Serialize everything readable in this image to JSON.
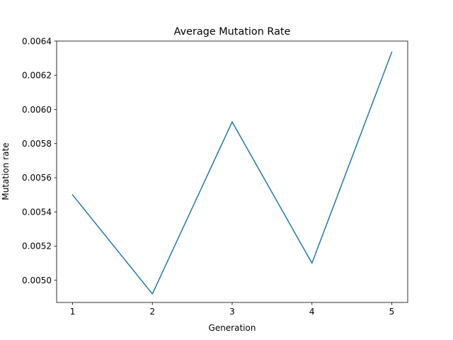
{
  "chart_data": {
    "type": "line",
    "title": "Average Mutation Rate",
    "xlabel": "Generation",
    "ylabel": "Mutation rate",
    "x": [
      1,
      2,
      3,
      4,
      5
    ],
    "x_ticks": [
      "1",
      "2",
      "3",
      "4",
      "5"
    ],
    "series": [
      {
        "values": [
          0.0055,
          0.00492,
          0.005927,
          0.0051,
          0.006335
        ]
      }
    ],
    "xlim": [
      0.8,
      5.2
    ],
    "ylim": [
      0.00487,
      0.0064
    ],
    "y_ticks": [
      "0.0050",
      "0.0052",
      "0.0054",
      "0.0056",
      "0.0058",
      "0.0060",
      "0.0062",
      "0.0064"
    ],
    "grid": false,
    "line_color": "#1f77b4"
  }
}
